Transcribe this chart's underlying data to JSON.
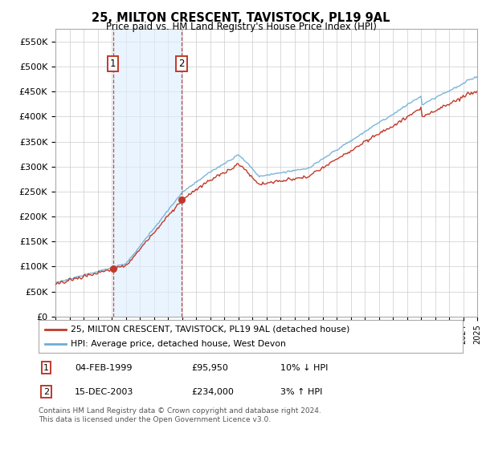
{
  "title": "25, MILTON CRESCENT, TAVISTOCK, PL19 9AL",
  "subtitle": "Price paid vs. HM Land Registry's House Price Index (HPI)",
  "hpi_label": "HPI: Average price, detached house, West Devon",
  "price_label": "25, MILTON CRESCENT, TAVISTOCK, PL19 9AL (detached house)",
  "footer": "Contains HM Land Registry data © Crown copyright and database right 2024.\nThis data is licensed under the Open Government Licence v3.0.",
  "sale1_date": "04-FEB-1999",
  "sale1_price": "£95,950",
  "sale1_hpi": "10% ↓ HPI",
  "sale2_date": "15-DEC-2003",
  "sale2_price": "£234,000",
  "sale2_hpi": "3% ↑ HPI",
  "hpi_color": "#6baed6",
  "price_color": "#c0392b",
  "sale1_x": 1999.09,
  "sale2_x": 2003.96,
  "sale1_y": 95950,
  "sale2_y": 234000,
  "vline1_x": 1999.09,
  "vline2_x": 2003.96,
  "xmin": 1995,
  "xmax": 2025,
  "ymin": 0,
  "ymax": 575000,
  "yticks": [
    0,
    50000,
    100000,
    150000,
    200000,
    250000,
    300000,
    350000,
    400000,
    450000,
    500000,
    550000
  ],
  "ytick_labels": [
    "£0",
    "£50K",
    "£100K",
    "£150K",
    "£200K",
    "£250K",
    "£300K",
    "£350K",
    "£400K",
    "£450K",
    "£500K",
    "£550K"
  ],
  "background_color": "#ffffff",
  "grid_color": "#cccccc",
  "shade_color": "#ddeeff"
}
